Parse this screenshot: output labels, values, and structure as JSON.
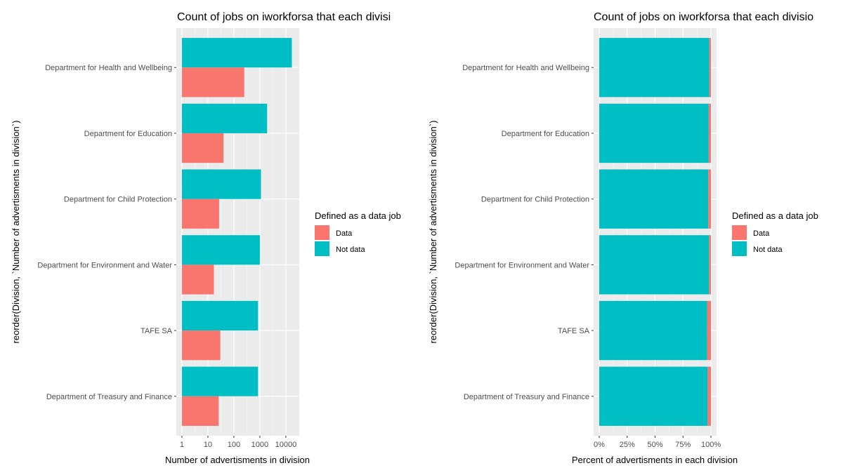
{
  "chart_data": [
    {
      "type": "bar",
      "title": "Count of jobs on iworkforsa that  each divisi",
      "xlabel": "Number of advertisments in division",
      "ylabel": "reorder(Division, `Number of advertisments in division`)",
      "x_scale": "log10",
      "xlim": [
        1,
        20000
      ],
      "x_ticks": [
        "1",
        "10",
        "100",
        "1000",
        "10000"
      ],
      "x_tick_values": [
        1,
        10,
        100,
        1000,
        10000
      ],
      "grid": true,
      "bar_position": "dodge",
      "categories": [
        "Department for Health and Wellbeing",
        "Department for Education",
        "Department for Child Protection",
        "Department for Environment and Water",
        "TAFE SA",
        "Department of Treasury and Finance"
      ],
      "series": [
        {
          "name": "Data",
          "color": "#F8766D",
          "values": [
            250,
            40,
            27,
            17,
            30,
            26
          ]
        },
        {
          "name": "Not data",
          "color": "#00BFC4",
          "values": [
            17000,
            1900,
            1100,
            1000,
            850,
            850
          ]
        }
      ],
      "legend": {
        "title": "Defined as a data job",
        "position": "right"
      }
    },
    {
      "type": "bar",
      "title": "Count of jobs on iworkforsa that  each divisio",
      "xlabel": "Percent of advertisments in each division",
      "ylabel": "reorder(Division, `Number of advertisments in division`)",
      "xlim": [
        0,
        1
      ],
      "x_ticks": [
        "0%",
        "25%",
        "50%",
        "75%",
        "100%"
      ],
      "x_tick_values": [
        0,
        0.25,
        0.5,
        0.75,
        1.0
      ],
      "grid": true,
      "bar_position": "stack-fill",
      "categories": [
        "Department for Health and Wellbeing",
        "Department for Education",
        "Department for Child Protection",
        "Department for Environment and Water",
        "TAFE SA",
        "Department of Treasury and Finance"
      ],
      "series": [
        {
          "name": "Data",
          "color": "#F8766D",
          "values": [
            0.015,
            0.02,
            0.024,
            0.017,
            0.034,
            0.03
          ]
        },
        {
          "name": "Not data",
          "color": "#00BFC4",
          "values": [
            0.985,
            0.98,
            0.976,
            0.983,
            0.966,
            0.97
          ]
        }
      ],
      "legend": {
        "title": "Defined as a data job",
        "position": "right"
      }
    }
  ]
}
